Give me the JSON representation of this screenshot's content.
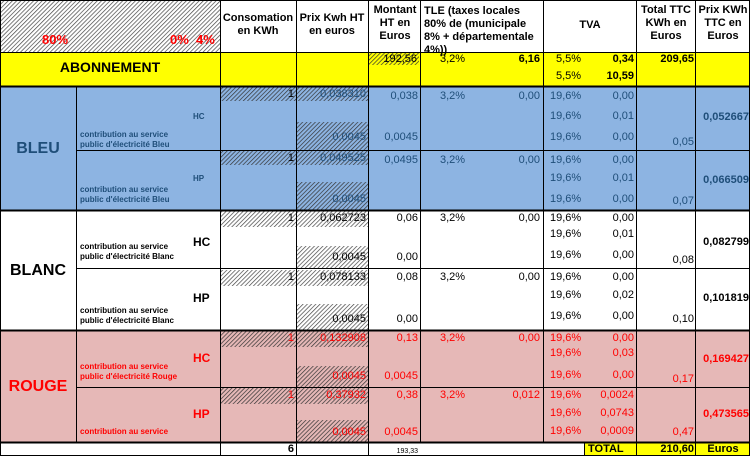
{
  "colors": {
    "yellow": "#FFFF00",
    "blue": "#8DB4E2",
    "white": "#FFFFFF",
    "red": "#E6B8B7",
    "title_blue": "#1F4E79",
    "text_red": "#FF0000"
  },
  "header": {
    "pct_80": "80%",
    "pct_0": "0%",
    "pct_4": "4%",
    "consommation": "Consomation en KWh",
    "prix_ht": "Prix Kwh HT en euros",
    "montant": "Montant HT en Euros",
    "tle": "TLE (taxes locales 80% de (municipale  8% + départementale  4%))",
    "tva": "TVA",
    "total_ttc": "Total TTC KWh en Euros",
    "prix_ttc": "Prix KWh TTC  en Euros"
  },
  "abonnement": {
    "label": "ABONNEMENT",
    "montant": "192,56",
    "tle_rate": "3,2%",
    "tle_val": "6,16",
    "tva1_rate": "5,5%",
    "tva1_val": "0,34",
    "tva2_rate": "5,5%",
    "tva2_val": "10,59",
    "total": "209,65"
  },
  "bleu": {
    "label": "BLEU",
    "contrib": "contribution au service public d'électricité Bleu",
    "hc": {
      "label": "HC",
      "conso": "1",
      "prix": "0,038310",
      "prix2": "0,0045",
      "montant": "0,038",
      "montant2": "0,0045",
      "tle_rate": "3,2%",
      "tle_val": "0,00",
      "tva_rates": [
        "19,6%",
        "19,6%",
        "19,6%"
      ],
      "tva_vals": [
        "0,00",
        "0,01",
        "0,00"
      ],
      "total": "0,05",
      "prix_ttc": "0,052667"
    },
    "hp": {
      "label": "HP",
      "conso": "1",
      "prix": "0,049525",
      "prix2": "0,0045",
      "montant": "0,0495",
      "montant2": "",
      "tle_rate": "3,2%",
      "tle_val": "0,00",
      "tva_rates": [
        "19,6%",
        "19,6%",
        "19,6%"
      ],
      "tva_vals": [
        "0,00",
        "0,01",
        "0,00"
      ],
      "total": "0,07",
      "prix_ttc": "0,066509"
    }
  },
  "blanc": {
    "label": "BLANC",
    "contrib": "contribution au service public d'électricité Blanc",
    "hc": {
      "label": "HC",
      "conso": "1",
      "prix": "0,062723",
      "prix2": "0,0045",
      "montant": "0,06",
      "montant2": "0,00",
      "tle_rate": "3,2%",
      "tle_val": "0,00",
      "tva_rates": [
        "19,6%",
        "19,6%",
        "19,6%"
      ],
      "tva_vals": [
        "0,00",
        "0,01",
        "0,00"
      ],
      "total": "0,08",
      "prix_ttc": "0,082799"
    },
    "hp": {
      "label": "HP",
      "conso": "1",
      "prix": "0,078133",
      "prix2": "0,0045",
      "montant": "0,08",
      "montant2": "0,00",
      "tle_rate": "3,2%",
      "tle_val": "0,00",
      "tva_rates": [
        "19,6%",
        "19,6%",
        "19,6%"
      ],
      "tva_vals": [
        "0,00",
        "0,02",
        "0,00"
      ],
      "total": "0,10",
      "prix_ttc": "0,101819"
    }
  },
  "rouge": {
    "label": "ROUGE",
    "contrib": "contribution au service public d'électricité Rouge",
    "contrib_short": "contribution au service",
    "hc": {
      "label": "HC",
      "conso": "1",
      "prix": "0,132908",
      "prix2": "0,0045",
      "montant": "0,13",
      "montant2": "0,0045",
      "tle_rate": "3,2%",
      "tle_val": "0,00",
      "tva_rates": [
        "19,6%",
        "19,6%",
        "19,6%"
      ],
      "tva_vals": [
        "0,00",
        "0,03",
        "0,00"
      ],
      "total": "0,17",
      "prix_ttc": "0,169427"
    },
    "hp": {
      "label": "HP",
      "conso": "1",
      "prix": "0,37932",
      "prix2": "0,0045",
      "montant": "0,38",
      "montant2": "0,0045",
      "tle_rate": "3,2%",
      "tle_val": "0,012",
      "tva_rates": [
        "19,6%",
        "19,6%",
        "19,6%"
      ],
      "tva_vals": [
        "0,0024",
        "0,0743",
        "0,0009"
      ],
      "total": "0,47",
      "prix_ttc": "0,473565"
    }
  },
  "footer": {
    "conso_total": "6",
    "montant_total": "193,33",
    "total_label": "TOTAL",
    "total_value": "210,60",
    "unit": "Euros"
  }
}
